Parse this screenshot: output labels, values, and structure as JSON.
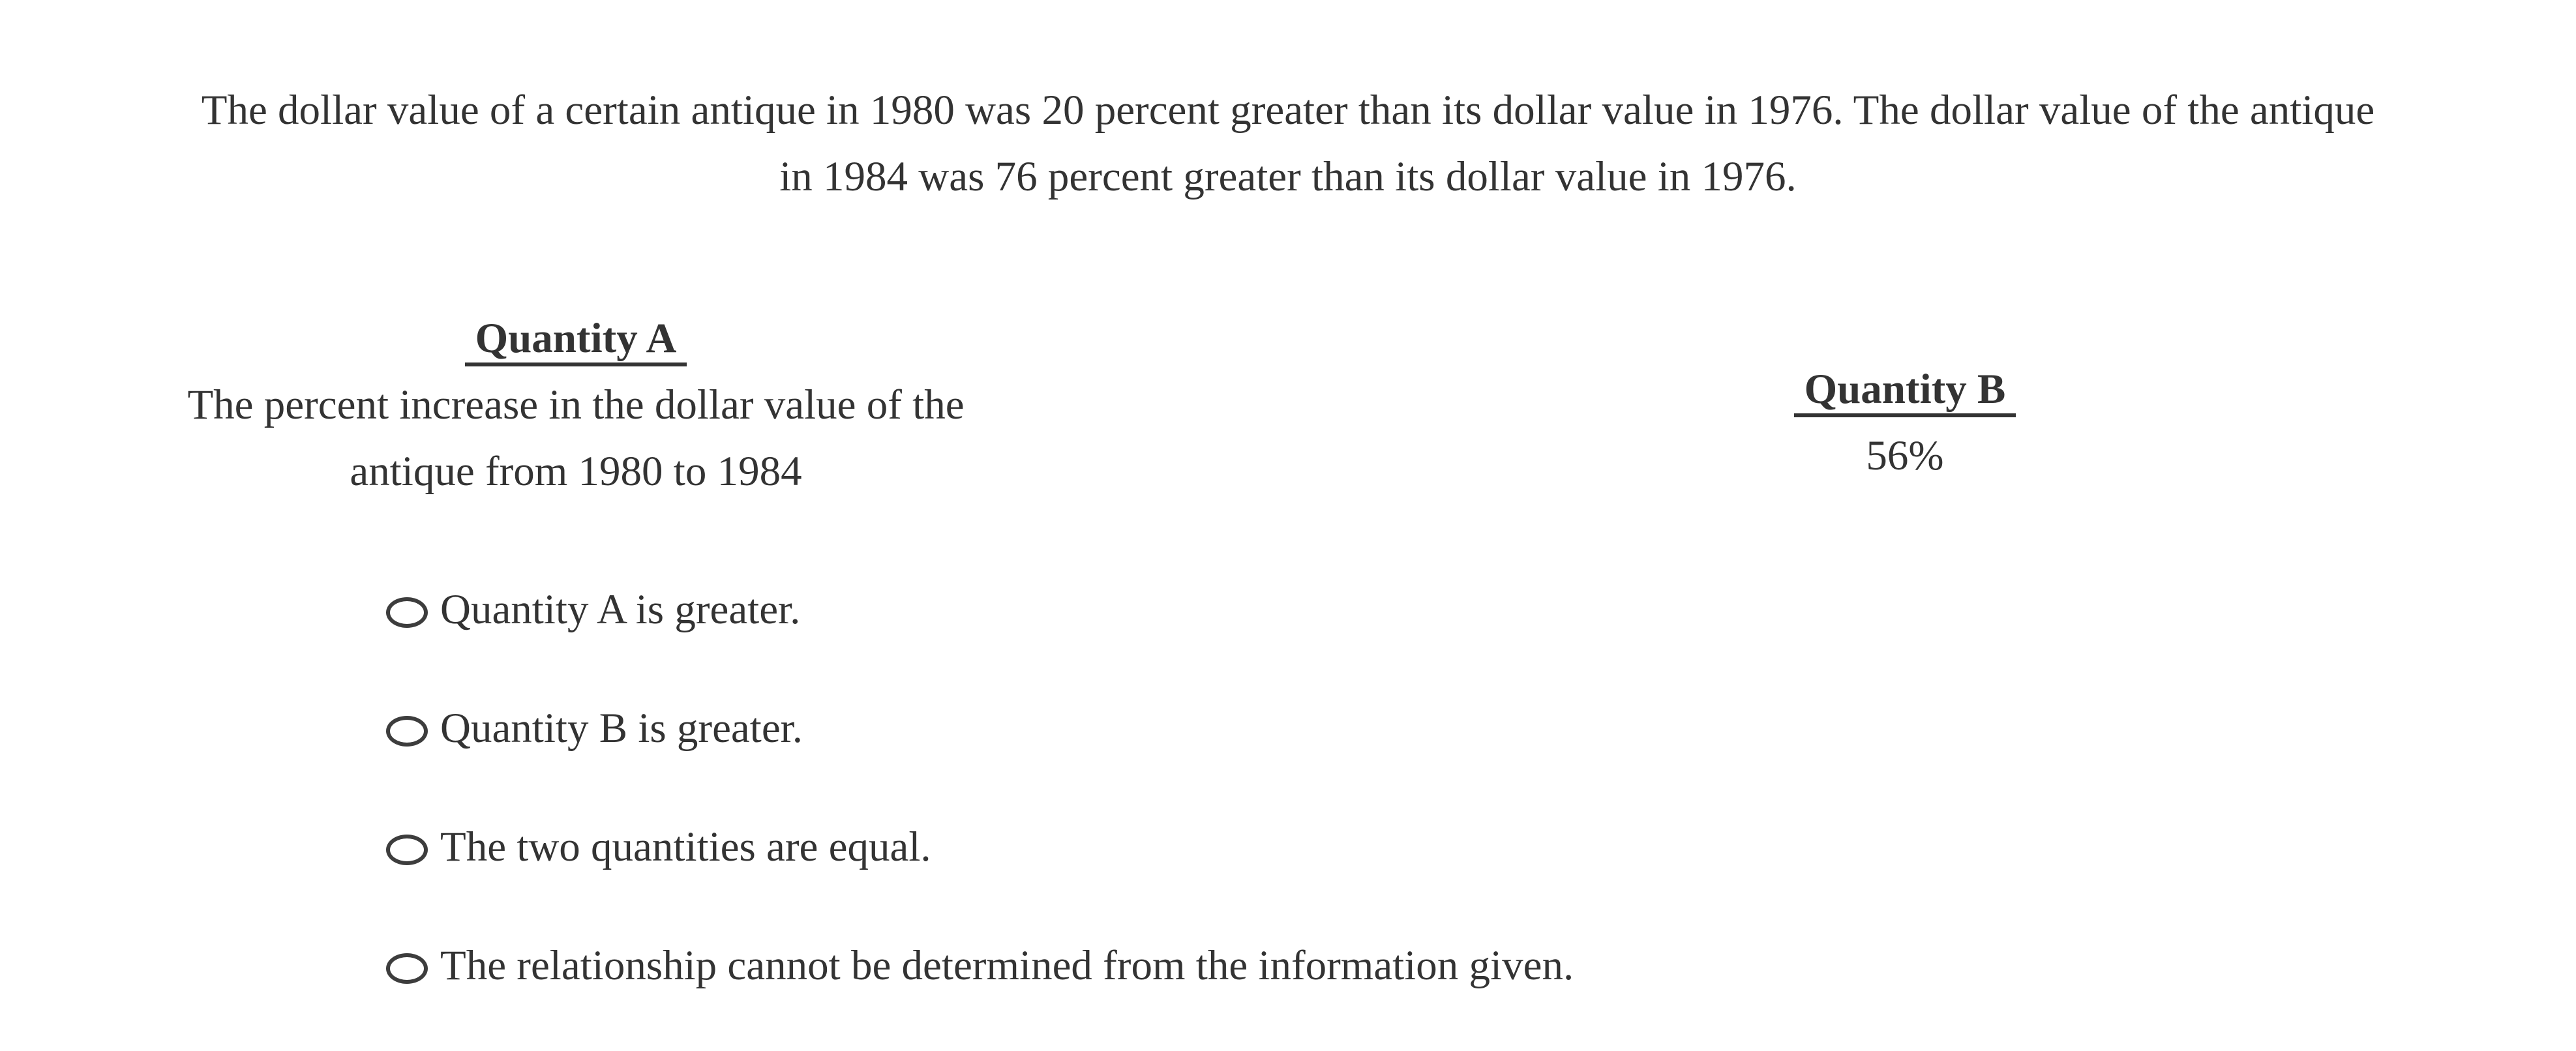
{
  "problem": {
    "lines": [
      "The dollar value of a certain antique in 1980 was 20 percent greater than its dollar value in 1976. The dollar value of the antique",
      "in 1984 was 76 percent greater than its dollar value in 1976."
    ]
  },
  "comparison": {
    "quantity_a": {
      "label": "Quantity A",
      "description_lines": [
        "The percent increase in the dollar value of the",
        "antique from 1980 to 1984"
      ]
    },
    "quantity_b": {
      "label": "Quantity B",
      "value": "56%"
    }
  },
  "options": [
    {
      "label": "Quantity A is greater.",
      "selected": false
    },
    {
      "label": "Quantity B is greater.",
      "selected": false
    },
    {
      "label": "The two quantities are equal.",
      "selected": false
    },
    {
      "label": "The relationship cannot be determined from the information given.",
      "selected": false
    }
  ],
  "colors": {
    "text": "#333333",
    "background": "#ffffff",
    "radio_border": "#3d3d3d"
  }
}
